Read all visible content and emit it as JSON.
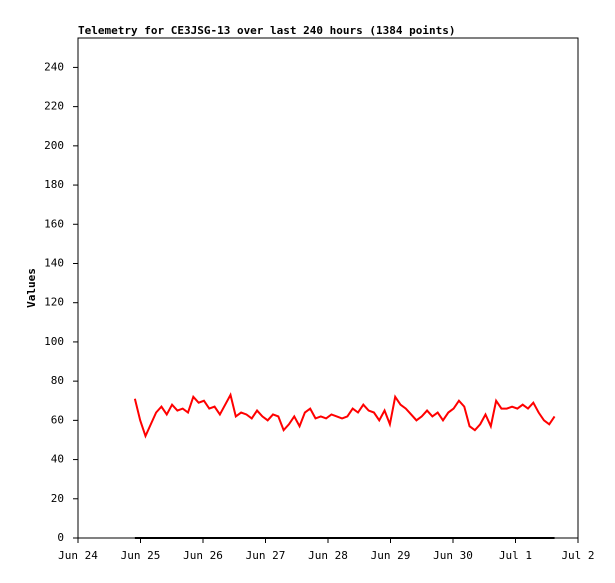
{
  "chart_data": {
    "type": "line",
    "title": "Telemetry for CE3JSG-13 over last 240 hours (1384 points)",
    "y_label": "Values",
    "x": [
      0.91,
      0.995,
      1.08,
      1.165,
      1.25,
      1.335,
      1.42,
      1.505,
      1.59,
      1.675,
      1.76,
      1.845,
      1.93,
      2.015,
      2.1,
      2.185,
      2.27,
      2.355,
      2.44,
      2.525,
      2.61,
      2.695,
      2.78,
      2.865,
      2.95,
      3.035,
      3.12,
      3.205,
      3.29,
      3.375,
      3.46,
      3.545,
      3.63,
      3.715,
      3.8,
      3.885,
      3.97,
      4.055,
      4.14,
      4.225,
      4.31,
      4.395,
      4.48,
      4.565,
      4.65,
      4.735,
      4.82,
      4.905,
      4.99,
      5.075,
      5.16,
      5.245,
      5.33,
      5.415,
      5.5,
      5.585,
      5.67,
      5.755,
      5.84,
      5.925,
      6.01,
      6.095,
      6.18,
      6.265,
      6.35,
      6.435,
      6.52,
      6.605,
      6.69,
      6.775,
      6.86,
      6.945,
      7.03,
      7.115,
      7.2,
      7.285,
      7.37,
      7.455,
      7.54,
      7.625
    ],
    "series": [
      {
        "color": "#ff0000",
        "values": [
          71,
          60,
          52,
          58,
          64,
          67,
          63,
          68,
          65,
          66,
          64,
          72,
          69,
          70,
          66,
          67,
          63,
          68,
          73,
          62,
          64,
          63,
          61,
          65,
          62,
          60,
          63,
          62,
          55,
          58,
          62,
          57,
          64,
          66,
          61,
          62,
          61,
          63,
          62,
          61,
          62,
          66,
          64,
          68,
          65,
          64,
          60,
          65,
          58,
          72,
          68,
          66,
          63,
          60,
          62,
          65,
          62,
          64,
          60,
          64,
          66,
          70,
          67,
          57,
          55,
          58,
          63,
          57,
          70,
          66,
          66,
          67,
          66,
          68,
          66,
          69,
          64,
          60,
          58,
          62
        ]
      },
      {
        "color": "#000000",
        "values": [
          0,
          0,
          0,
          0,
          0,
          0,
          0,
          0,
          0,
          0,
          0,
          0,
          0,
          0,
          0,
          0,
          0,
          0,
          0,
          0,
          0,
          0,
          0,
          0,
          0,
          0,
          0,
          0,
          0,
          0,
          0,
          0,
          0,
          0,
          0,
          0,
          0,
          0,
          0,
          0,
          0,
          0,
          0,
          0,
          0,
          0,
          0,
          0,
          0,
          0,
          0,
          0,
          0,
          0,
          0,
          0,
          0,
          0,
          0,
          0,
          0,
          0,
          0,
          0,
          0,
          0,
          0,
          0,
          0,
          0,
          0,
          0,
          0,
          0,
          0,
          0,
          0,
          0,
          0,
          0
        ]
      }
    ],
    "xlim": [
      0,
      8
    ],
    "xticks": [
      {
        "value": 0,
        "label": "Jun 24"
      },
      {
        "value": 1,
        "label": "Jun 25"
      },
      {
        "value": 2,
        "label": "Jun 26"
      },
      {
        "value": 3,
        "label": "Jun 27"
      },
      {
        "value": 4,
        "label": "Jun 28"
      },
      {
        "value": 5,
        "label": "Jun 29"
      },
      {
        "value": 6,
        "label": "Jun 30"
      },
      {
        "value": 7,
        "label": "Jul 1"
      },
      {
        "value": 8,
        "label": "Jul 2"
      }
    ],
    "ylim": [
      0,
      255
    ],
    "yticks": [
      0,
      20,
      40,
      60,
      80,
      100,
      120,
      140,
      160,
      180,
      200,
      220,
      240
    ]
  }
}
